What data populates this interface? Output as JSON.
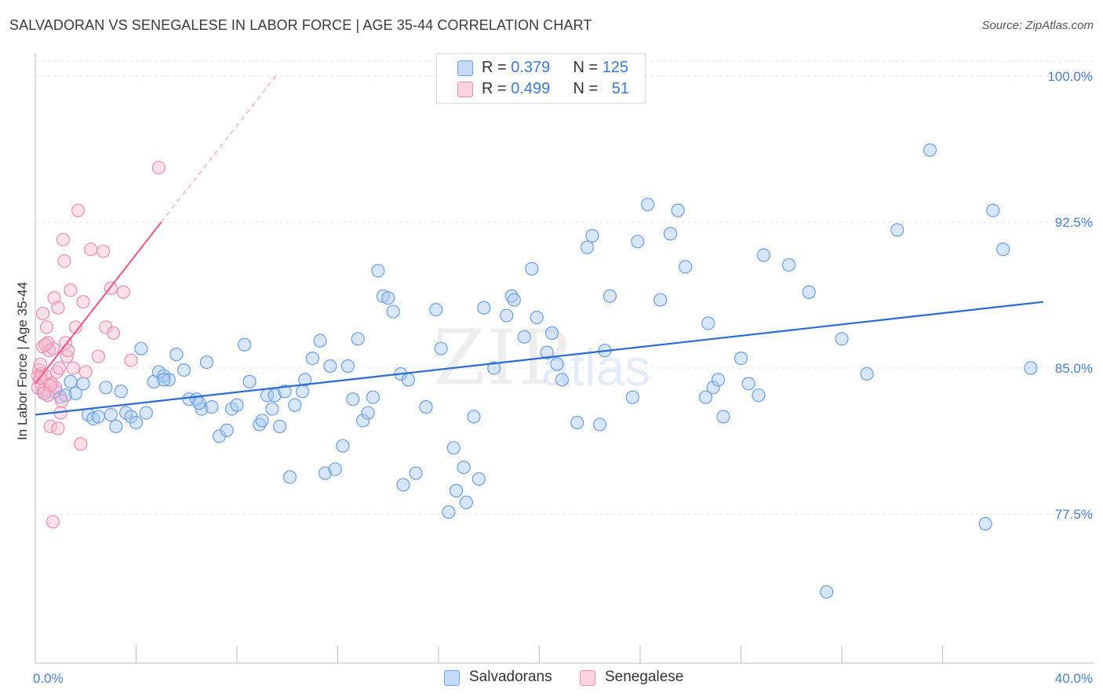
{
  "title": "SALVADORAN VS SENEGALESE IN LABOR FORCE | AGE 35-44 CORRELATION CHART",
  "source": "Source: ZipAtlas.com",
  "watermark": {
    "zip": "ZIP",
    "atlas": "atlas"
  },
  "legend_top": {
    "rows": [
      {
        "r_label": "R = ",
        "r_value": "0.379",
        "n_label": "N = ",
        "n_value": "125",
        "color": "#a9c7f5"
      },
      {
        "r_label": "R = ",
        "r_value": "0.499",
        "n_label": "N = ",
        "n_value": "51",
        "color": "#f8bcd0"
      }
    ]
  },
  "legend_bottom": [
    {
      "label": "Salvadorans",
      "color": "#a9c7f5"
    },
    {
      "label": "Senegalese",
      "color": "#f8bcd0"
    }
  ],
  "chart_data": {
    "type": "scatter",
    "title": "SALVADORAN VS SENEGALESE IN LABOR FORCE | AGE 35-44 CORRELATION CHART",
    "xlabel": "",
    "ylabel": "In Labor Force | Age 35-44",
    "xlim": [
      0,
      40
    ],
    "ylim": [
      70.0,
      101.0
    ],
    "x_tick_labels": [
      "0.0%",
      "40.0%"
    ],
    "y_ticks": [
      77.5,
      85.0,
      92.5,
      100.0
    ],
    "y_tick_labels": [
      "77.5%",
      "85.0%",
      "92.5%",
      "100.0%"
    ],
    "grid": true,
    "series": [
      {
        "name": "Salvadorans",
        "color": "#6a9ee6",
        "fill": "#a9c7f5",
        "r": 0.379,
        "n": 125,
        "trend": {
          "x0": 0,
          "y0": 82.6,
          "x1": 40,
          "y1": 88.4
        },
        "points": [
          [
            0.3,
            83.8
          ],
          [
            0.5,
            83.6
          ],
          [
            0.8,
            83.8
          ],
          [
            1.0,
            83.5
          ],
          [
            1.2,
            83.6
          ],
          [
            1.4,
            84.3
          ],
          [
            1.6,
            83.7
          ],
          [
            1.9,
            84.2
          ],
          [
            2.1,
            82.6
          ],
          [
            2.3,
            82.4
          ],
          [
            2.5,
            82.5
          ],
          [
            2.8,
            84.0
          ],
          [
            3.0,
            82.6
          ],
          [
            3.2,
            82.0
          ],
          [
            3.4,
            83.8
          ],
          [
            3.6,
            82.7
          ],
          [
            3.8,
            82.5
          ],
          [
            4.0,
            82.2
          ],
          [
            4.2,
            86.0
          ],
          [
            4.4,
            82.7
          ],
          [
            4.7,
            84.3
          ],
          [
            4.9,
            84.8
          ],
          [
            5.1,
            84.6
          ],
          [
            5.3,
            84.4
          ],
          [
            5.6,
            85.7
          ],
          [
            5.9,
            84.9
          ],
          [
            6.1,
            83.4
          ],
          [
            6.4,
            83.4
          ],
          [
            6.6,
            82.9
          ],
          [
            6.8,
            85.3
          ],
          [
            7.0,
            83.0
          ],
          [
            7.3,
            81.5
          ],
          [
            7.6,
            81.8
          ],
          [
            7.8,
            82.9
          ],
          [
            8.0,
            83.1
          ],
          [
            8.3,
            86.2
          ],
          [
            8.5,
            84.3
          ],
          [
            8.9,
            82.1
          ],
          [
            9.0,
            82.3
          ],
          [
            9.2,
            83.6
          ],
          [
            9.5,
            83.6
          ],
          [
            9.7,
            82.0
          ],
          [
            9.9,
            83.8
          ],
          [
            10.1,
            79.4
          ],
          [
            10.3,
            83.1
          ],
          [
            10.6,
            83.8
          ],
          [
            10.7,
            84.4
          ],
          [
            11.0,
            85.5
          ],
          [
            11.3,
            86.4
          ],
          [
            11.5,
            79.6
          ],
          [
            11.7,
            85.1
          ],
          [
            11.9,
            79.8
          ],
          [
            12.2,
            81.0
          ],
          [
            12.4,
            85.1
          ],
          [
            12.6,
            83.4
          ],
          [
            12.8,
            86.5
          ],
          [
            13.0,
            82.3
          ],
          [
            13.2,
            82.7
          ],
          [
            13.4,
            83.5
          ],
          [
            13.6,
            90.0
          ],
          [
            13.8,
            88.7
          ],
          [
            14.0,
            88.6
          ],
          [
            14.2,
            87.9
          ],
          [
            14.5,
            84.7
          ],
          [
            14.8,
            84.4
          ],
          [
            14.6,
            79.0
          ],
          [
            15.1,
            79.6
          ],
          [
            15.5,
            83.0
          ],
          [
            15.9,
            88.0
          ],
          [
            16.1,
            86.0
          ],
          [
            16.4,
            77.6
          ],
          [
            16.6,
            80.9
          ],
          [
            16.7,
            78.7
          ],
          [
            17.0,
            79.9
          ],
          [
            17.1,
            78.1
          ],
          [
            17.4,
            82.5
          ],
          [
            17.6,
            79.3
          ],
          [
            17.8,
            88.1
          ],
          [
            18.2,
            85.0
          ],
          [
            18.7,
            87.7
          ],
          [
            18.9,
            88.7
          ],
          [
            19.0,
            88.5
          ],
          [
            19.4,
            86.6
          ],
          [
            19.7,
            90.1
          ],
          [
            19.9,
            87.6
          ],
          [
            20.3,
            85.8
          ],
          [
            20.5,
            86.8
          ],
          [
            20.7,
            85.2
          ],
          [
            20.9,
            84.4
          ],
          [
            21.5,
            82.2
          ],
          [
            21.9,
            91.2
          ],
          [
            22.1,
            91.8
          ],
          [
            22.4,
            82.1
          ],
          [
            22.6,
            85.9
          ],
          [
            22.8,
            88.7
          ],
          [
            23.7,
            83.5
          ],
          [
            23.9,
            91.5
          ],
          [
            24.3,
            93.4
          ],
          [
            24.8,
            88.5
          ],
          [
            25.2,
            91.9
          ],
          [
            25.5,
            93.1
          ],
          [
            25.8,
            90.2
          ],
          [
            26.6,
            83.5
          ],
          [
            26.7,
            87.3
          ],
          [
            26.9,
            84.0
          ],
          [
            27.1,
            84.4
          ],
          [
            27.3,
            82.5
          ],
          [
            28.0,
            85.5
          ],
          [
            28.3,
            84.2
          ],
          [
            28.7,
            83.6
          ],
          [
            28.9,
            90.8
          ],
          [
            29.9,
            90.3
          ],
          [
            30.7,
            88.9
          ],
          [
            31.4,
            73.5
          ],
          [
            32.0,
            86.5
          ],
          [
            33.0,
            84.7
          ],
          [
            34.2,
            92.1
          ],
          [
            35.5,
            96.2
          ],
          [
            37.7,
            77.0
          ],
          [
            38.0,
            93.1
          ],
          [
            38.4,
            91.1
          ],
          [
            39.5,
            85.0
          ],
          [
            5.1,
            84.4
          ],
          [
            6.5,
            83.2
          ],
          [
            9.4,
            82.9
          ]
        ]
      },
      {
        "name": "Senegalese",
        "color": "#f08db0",
        "fill": "#f8bcd0",
        "r": 0.499,
        "n": 51,
        "trend": {
          "x0": 0,
          "y0": 84.2,
          "x1": 5.0,
          "y1": 92.5
        },
        "trend_dashed": {
          "x0": 5.0,
          "y0": 92.5,
          "x1": 9.6,
          "y1": 100.1
        },
        "points": [
          [
            0.1,
            84.6
          ],
          [
            0.15,
            84.9
          ],
          [
            0.2,
            84.3
          ],
          [
            0.25,
            84.7
          ],
          [
            0.3,
            86.1
          ],
          [
            0.35,
            83.9
          ],
          [
            0.4,
            84.6
          ],
          [
            0.45,
            87.1
          ],
          [
            0.5,
            86.3
          ],
          [
            0.55,
            85.9
          ],
          [
            0.6,
            82.0
          ],
          [
            0.65,
            84.2
          ],
          [
            0.7,
            86.0
          ],
          [
            0.75,
            88.6
          ],
          [
            0.8,
            84.0
          ],
          [
            0.85,
            84.8
          ],
          [
            0.9,
            88.1
          ],
          [
            0.95,
            85.0
          ],
          [
            1.0,
            82.7
          ],
          [
            1.05,
            83.3
          ],
          [
            1.1,
            91.6
          ],
          [
            1.15,
            90.5
          ],
          [
            1.2,
            86.3
          ],
          [
            1.25,
            85.6
          ],
          [
            1.3,
            85.9
          ],
          [
            1.4,
            89.0
          ],
          [
            1.5,
            85.0
          ],
          [
            1.6,
            87.1
          ],
          [
            1.7,
            93.1
          ],
          [
            1.8,
            81.1
          ],
          [
            1.9,
            88.4
          ],
          [
            2.0,
            84.8
          ],
          [
            2.2,
            91.1
          ],
          [
            2.5,
            85.6
          ],
          [
            2.7,
            91.0
          ],
          [
            2.8,
            87.1
          ],
          [
            3.0,
            89.1
          ],
          [
            3.1,
            86.8
          ],
          [
            3.5,
            88.9
          ],
          [
            3.8,
            85.4
          ],
          [
            4.9,
            95.3
          ],
          [
            0.3,
            87.8
          ],
          [
            0.5,
            83.6
          ],
          [
            0.7,
            77.1
          ],
          [
            0.4,
            86.2
          ],
          [
            0.2,
            85.2
          ],
          [
            0.6,
            84.1
          ],
          [
            0.9,
            81.9
          ],
          [
            0.1,
            84.0
          ],
          [
            0.2,
            84.5
          ],
          [
            0.35,
            83.7
          ]
        ]
      }
    ]
  }
}
